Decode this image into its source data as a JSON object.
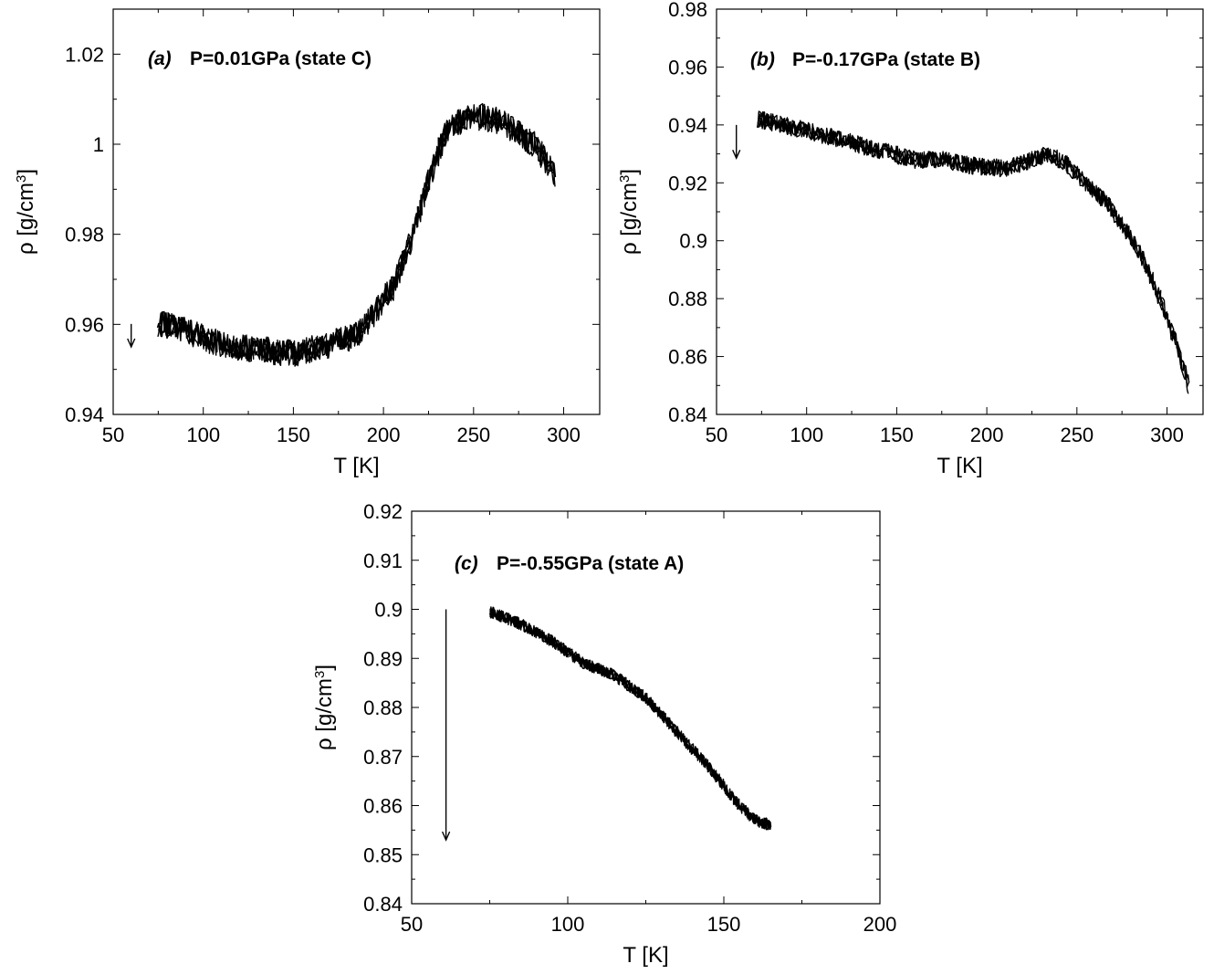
{
  "chart_data": [
    {
      "type": "line",
      "panel_label": "(a)",
      "title": "P=0.01GPa (state C)",
      "xlabel": "T [K]",
      "ylabel_main": "ρ [g/cm",
      "ylabel_sup": "3",
      "ylabel_close": "]",
      "xlim": [
        50,
        320
      ],
      "ylim": [
        0.94,
        1.03
      ],
      "xticks": [
        50,
        100,
        150,
        200,
        250,
        300
      ],
      "xtick_labels": [
        "50",
        "100",
        "150",
        "200",
        "250",
        "300"
      ],
      "yticks": [
        0.94,
        0.96,
        0.98,
        1.0,
        1.02
      ],
      "ytick_labels": [
        "0.94",
        "0.96",
        "0.98",
        "1",
        "1.02"
      ],
      "arrow": {
        "x": 60,
        "y_from": 0.9601,
        "y_to": 0.955
      },
      "series": [
        {
          "x": [
            75,
            90,
            110,
            130,
            150,
            170,
            185,
            195,
            205,
            215,
            225,
            235,
            245,
            255,
            265,
            275,
            285,
            295
          ],
          "y": [
            0.9602,
            0.9585,
            0.9555,
            0.9545,
            0.9535,
            0.9555,
            0.9575,
            0.9625,
            0.968,
            0.978,
            0.992,
            1.003,
            1.006,
            1.006,
            1.005,
            1.0025,
            0.9995,
            0.993
          ],
          "band": 0.003
        }
      ]
    },
    {
      "type": "line",
      "panel_label": "(b)",
      "title": "P=-0.17GPa (state B)",
      "xlabel": "T [K]",
      "ylabel_main": "ρ [g/cm",
      "ylabel_sup": "3",
      "ylabel_close": "]",
      "xlim": [
        50,
        320
      ],
      "ylim": [
        0.84,
        0.98
      ],
      "xticks": [
        50,
        100,
        150,
        200,
        250,
        300
      ],
      "xtick_labels": [
        "50",
        "100",
        "150",
        "200",
        "250",
        "300"
      ],
      "yticks": [
        0.84,
        0.86,
        0.88,
        0.9,
        0.92,
        0.94,
        0.96,
        0.98
      ],
      "ytick_labels": [
        "0.84",
        "0.86",
        "0.88",
        "0.9",
        "0.92",
        "0.94",
        "0.96",
        "0.98"
      ],
      "arrow": {
        "x": 61,
        "y_from": 0.94,
        "y_to": 0.9285
      },
      "series": [
        {
          "x": [
            73,
            100,
            130,
            160,
            175,
            190,
            210,
            225,
            235,
            245,
            255,
            265,
            275,
            285,
            295,
            305,
            312
          ],
          "y": [
            0.942,
            0.938,
            0.933,
            0.928,
            0.928,
            0.926,
            0.925,
            0.928,
            0.93,
            0.926,
            0.92,
            0.914,
            0.906,
            0.896,
            0.882,
            0.865,
            0.85
          ],
          "band": 0.003
        }
      ]
    },
    {
      "type": "line",
      "panel_label": "(c)",
      "title": "P=-0.55GPa (state A)",
      "xlabel": "T [K]",
      "ylabel_main": "ρ [g/cm",
      "ylabel_sup": "3",
      "ylabel_close": "]",
      "xlim": [
        50,
        200
      ],
      "ylim": [
        0.84,
        0.92
      ],
      "xticks": [
        50,
        100,
        150,
        200
      ],
      "xtick_labels": [
        "50",
        "100",
        "150",
        "200"
      ],
      "yticks": [
        0.84,
        0.85,
        0.86,
        0.87,
        0.88,
        0.89,
        0.9,
        0.91,
        0.92
      ],
      "ytick_labels": [
        "0.84",
        "0.85",
        "0.86",
        "0.87",
        "0.88",
        "0.89",
        "0.9",
        "0.91",
        "0.92"
      ],
      "arrow": {
        "x": 61,
        "y_from": 0.9,
        "y_to": 0.853
      },
      "series": [
        {
          "x": [
            75,
            85,
            95,
            105,
            115,
            125,
            135,
            145,
            155,
            160,
            165
          ],
          "y": [
            0.8995,
            0.897,
            0.8935,
            0.889,
            0.8865,
            0.882,
            0.875,
            0.868,
            0.86,
            0.857,
            0.856
          ],
          "band": 0.0012
        }
      ]
    }
  ]
}
